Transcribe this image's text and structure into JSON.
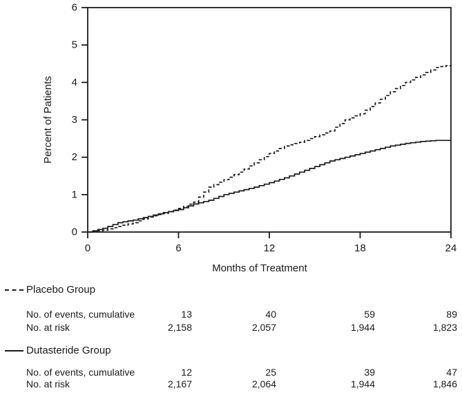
{
  "chart_data": {
    "type": "line",
    "title": "",
    "xlabel": "Months of Treatment",
    "ylabel": "Percent of Patients",
    "xlim": [
      0,
      24
    ],
    "ylim": [
      0,
      6
    ],
    "xticks": [
      0,
      6,
      12,
      18,
      24
    ],
    "yticks": [
      0,
      1,
      2,
      3,
      4,
      5,
      6
    ],
    "grid": false,
    "legend_position": "below-left",
    "x": [
      0,
      1,
      2,
      3,
      4,
      5,
      6,
      7,
      8,
      9,
      10,
      11,
      12,
      13,
      14,
      15,
      16,
      17,
      18,
      19,
      20,
      21,
      22,
      23,
      24
    ],
    "series": [
      {
        "name": "Placebo Group",
        "key": "placebo",
        "style": "dashed",
        "values": [
          0,
          0.05,
          0.15,
          0.25,
          0.4,
          0.5,
          0.63,
          0.8,
          1.2,
          1.4,
          1.6,
          1.85,
          2.1,
          2.3,
          2.4,
          2.55,
          2.7,
          3.0,
          3.16,
          3.45,
          3.75,
          4.0,
          4.2,
          4.4,
          4.47
        ]
      },
      {
        "name": "Dutasteride Group",
        "key": "dutasteride",
        "style": "solid",
        "values": [
          0,
          0.1,
          0.25,
          0.32,
          0.42,
          0.52,
          0.6,
          0.75,
          0.85,
          1.0,
          1.1,
          1.2,
          1.32,
          1.45,
          1.6,
          1.75,
          1.9,
          2.0,
          2.1,
          2.2,
          2.3,
          2.37,
          2.42,
          2.45,
          2.45
        ]
      }
    ]
  },
  "table": {
    "timepoints_months": [
      6,
      12,
      18,
      24
    ],
    "groups": [
      {
        "legend": "Placebo Group",
        "line_style": "dashed",
        "rows": [
          {
            "label": "No. of events, cumulative",
            "values": [
              "13",
              "40",
              "59",
              "89"
            ]
          },
          {
            "label": "No. at risk",
            "values": [
              "2,158",
              "2,057",
              "1,944",
              "1,823"
            ]
          }
        ]
      },
      {
        "legend": "Dutasteride Group",
        "line_style": "solid",
        "rows": [
          {
            "label": "No. of events, cumulative",
            "values": [
              "12",
              "25",
              "39",
              "47"
            ]
          },
          {
            "label": "No. at risk",
            "values": [
              "2,167",
              "2,064",
              "1,944",
              "1,846"
            ]
          }
        ]
      }
    ]
  },
  "colors": {
    "line": "#1a1a1a",
    "text": "#1a1a1a",
    "background": "#ffffff"
  }
}
